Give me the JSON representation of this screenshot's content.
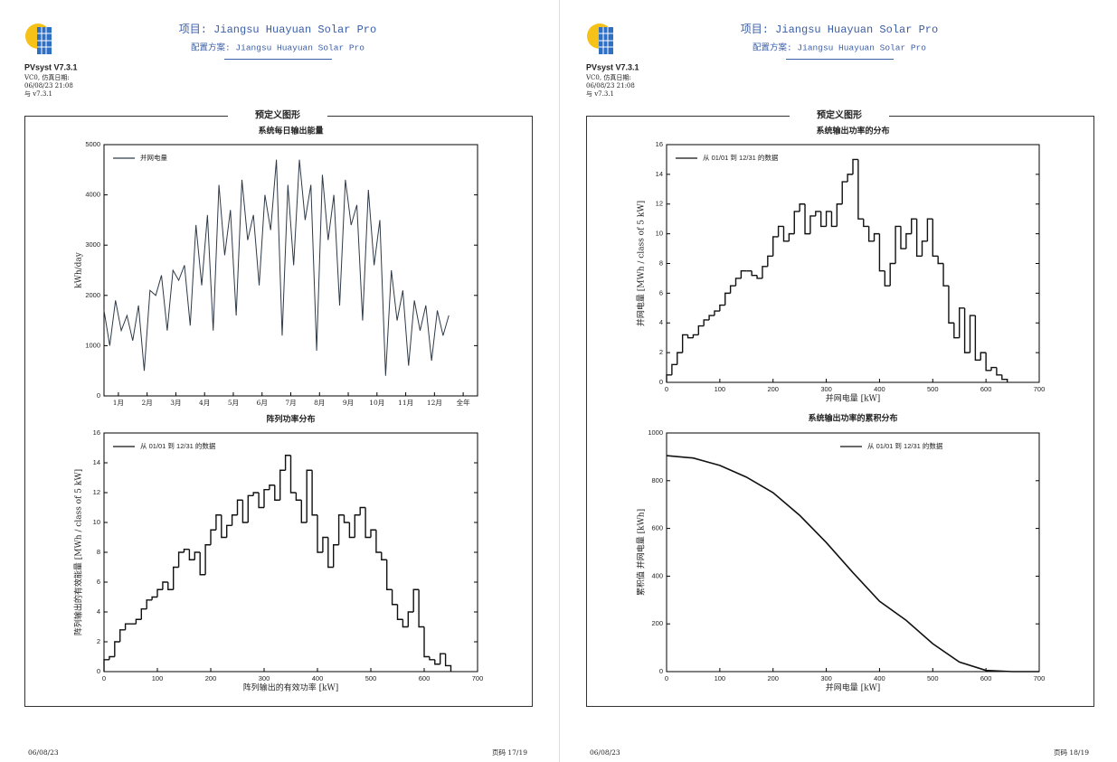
{
  "pages": [
    {
      "project": "项目: Jiangsu Huayuan Solar Pro",
      "variant": "配置方案: Jiangsu Huayuan Solar Pro",
      "product": "PVsyst V7.3.1",
      "info": [
        "VC0, 仿真日期:",
        "06/08/23 21:08",
        "与 v7.3.1"
      ],
      "section": "预定义图形",
      "footer_date": "06/08/23",
      "footer_page": "页码 17/19"
    },
    {
      "project": "项目: Jiangsu Huayuan Solar Pro",
      "variant": "配置方案: Jiangsu Huayuan Solar Pro",
      "product": "PVsyst V7.3.1",
      "info": [
        "VC0, 仿真日期:",
        "06/08/23 21:08",
        "与 v7.3.1"
      ],
      "section": "预定义图形",
      "footer_date": "06/08/23",
      "footer_page": "页码 18/19"
    }
  ],
  "chart_data": [
    {
      "type": "line",
      "title": "系统每日输出能量",
      "ylabel": "kWh/day",
      "legend": "upper left",
      "xlim": [
        0,
        13
      ],
      "ylim": [
        0,
        5000
      ],
      "xticks": [
        {
          "value": 0.5,
          "label": "1月"
        },
        {
          "value": 1.5,
          "label": "2月"
        },
        {
          "value": 2.5,
          "label": "3月"
        },
        {
          "value": 3.5,
          "label": "4月"
        },
        {
          "value": 4.5,
          "label": "5月"
        },
        {
          "value": 5.5,
          "label": "6月"
        },
        {
          "value": 6.5,
          "label": "7月"
        },
        {
          "value": 7.5,
          "label": "8月"
        },
        {
          "value": 8.5,
          "label": "9月"
        },
        {
          "value": 9.5,
          "label": "10月"
        },
        {
          "value": 10.5,
          "label": "11月"
        },
        {
          "value": 11.5,
          "label": "12月"
        },
        {
          "value": 12.5,
          "label": "全年"
        }
      ],
      "yticks": [
        0,
        1000,
        2000,
        3000,
        4000,
        5000
      ],
      "series": [
        {
          "name": "并网电量",
          "color": "#2e3a48",
          "x": [
            0,
            0.2,
            0.4,
            0.6,
            0.8,
            1,
            1.2,
            1.4,
            1.6,
            1.8,
            2,
            2.2,
            2.4,
            2.6,
            2.8,
            3,
            3.2,
            3.4,
            3.6,
            3.8,
            4,
            4.2,
            4.4,
            4.6,
            4.8,
            5,
            5.2,
            5.4,
            5.6,
            5.8,
            6,
            6.2,
            6.4,
            6.6,
            6.8,
            7,
            7.2,
            7.4,
            7.6,
            7.8,
            8,
            8.2,
            8.4,
            8.6,
            8.8,
            9,
            9.2,
            9.4,
            9.6,
            9.8,
            10,
            10.2,
            10.4,
            10.6,
            10.8,
            11,
            11.2,
            11.4,
            11.6,
            11.8,
            12
          ],
          "values": [
            1700,
            1000,
            1900,
            1300,
            1600,
            1100,
            1800,
            500,
            2100,
            2000,
            2400,
            1300,
            2500,
            2300,
            2600,
            1400,
            3400,
            2200,
            3600,
            1300,
            4200,
            2800,
            3700,
            1600,
            4300,
            3100,
            3600,
            2200,
            4000,
            3300,
            4700,
            1200,
            4200,
            2600,
            4700,
            3500,
            4200,
            900,
            4400,
            3100,
            4000,
            1800,
            4300,
            3400,
            3800,
            1500,
            4100,
            2600,
            3500,
            400,
            2500,
            1500,
            2100,
            600,
            1900,
            1300,
            1800,
            700,
            1700,
            1200,
            1600
          ]
        }
      ]
    },
    {
      "type": "histogram",
      "title": "阵列功率分布",
      "xlabel": "阵列输出的有效功率 [kW]",
      "ylabel": "阵列输出的有效能量 [MWh / class of 5 kW]",
      "legend": "upper left",
      "xlim": [
        0,
        700
      ],
      "ylim": [
        0,
        16
      ],
      "xticks": [
        0,
        100,
        200,
        300,
        400,
        500,
        600,
        700
      ],
      "yticks": [
        0,
        2,
        4,
        6,
        8,
        10,
        12,
        14,
        16
      ],
      "series": [
        {
          "name": "从 01/01 到 12/31 的数据",
          "color": "#111111",
          "bins": [
            0,
            10,
            20,
            30,
            40,
            50,
            60,
            70,
            80,
            90,
            100,
            110,
            120,
            130,
            140,
            150,
            160,
            170,
            180,
            190,
            200,
            210,
            220,
            230,
            240,
            250,
            260,
            270,
            280,
            290,
            300,
            310,
            320,
            330,
            340,
            350,
            360,
            370,
            380,
            390,
            400,
            410,
            420,
            430,
            440,
            450,
            460,
            470,
            480,
            490,
            500,
            510,
            520,
            530,
            540,
            550,
            560,
            570,
            580,
            590,
            600,
            610,
            620,
            630,
            640,
            650
          ],
          "values": [
            0.8,
            1.0,
            2.0,
            2.8,
            3.2,
            3.2,
            3.5,
            4.2,
            4.8,
            5.0,
            5.5,
            6.0,
            5.5,
            7.0,
            8.0,
            8.2,
            7.5,
            8.0,
            6.5,
            8.5,
            9.5,
            10.5,
            9.0,
            9.8,
            10.5,
            11.5,
            10.0,
            11.8,
            12.0,
            11.0,
            12.2,
            12.5,
            11.5,
            13.5,
            14.5,
            12.0,
            11.5,
            10.0,
            13.5,
            10.5,
            8.0,
            9.0,
            7.0,
            8.5,
            10.5,
            10.0,
            9.0,
            10.5,
            11.0,
            9.0,
            9.5,
            8.0,
            7.5,
            5.5,
            4.5,
            3.5,
            3.0,
            4.0,
            5.5,
            3.0,
            1.0,
            0.8,
            0.5,
            1.2,
            0.4
          ]
        }
      ]
    },
    {
      "type": "histogram",
      "title": "系统输出功率的分布",
      "xlabel": "并网电量 [kW]",
      "ylabel": "并网电量 [MWh / class of 5 kW]",
      "legend": "upper left",
      "xlim": [
        0,
        700
      ],
      "ylim": [
        0,
        16
      ],
      "xticks": [
        0,
        100,
        200,
        300,
        400,
        500,
        600,
        700
      ],
      "yticks": [
        0,
        2,
        4,
        6,
        8,
        10,
        12,
        14,
        16
      ],
      "series": [
        {
          "name": "从 01/01 到 12/31 的数据",
          "color": "#111111",
          "bins": [
            0,
            10,
            20,
            30,
            40,
            50,
            60,
            70,
            80,
            90,
            100,
            110,
            120,
            130,
            140,
            150,
            160,
            170,
            180,
            190,
            200,
            210,
            220,
            230,
            240,
            250,
            260,
            270,
            280,
            290,
            300,
            310,
            320,
            330,
            340,
            350,
            360,
            370,
            380,
            390,
            400,
            410,
            420,
            430,
            440,
            450,
            460,
            470,
            480,
            490,
            500,
            510,
            520,
            530,
            540,
            550,
            560,
            570,
            580,
            590,
            600,
            610,
            620,
            630,
            640
          ],
          "values": [
            0.5,
            1.2,
            2.0,
            3.2,
            3.0,
            3.2,
            3.8,
            4.2,
            4.5,
            4.8,
            5.2,
            6.0,
            6.5,
            7.0,
            7.5,
            7.5,
            7.2,
            7.0,
            7.8,
            8.5,
            9.8,
            10.5,
            9.5,
            10.0,
            11.5,
            12.0,
            10.0,
            11.2,
            11.5,
            10.5,
            11.5,
            10.5,
            12.0,
            13.5,
            14.0,
            15.0,
            11.0,
            10.5,
            9.5,
            10.0,
            7.5,
            6.5,
            8.0,
            10.5,
            9.0,
            10.0,
            11.0,
            8.5,
            9.5,
            11.0,
            8.5,
            8.0,
            6.5,
            4.0,
            3.0,
            5.0,
            2.0,
            4.5,
            1.5,
            2.0,
            0.8,
            1.0,
            0.5,
            0.2
          ]
        }
      ]
    },
    {
      "type": "line",
      "title": "系统输出功率的累积分布",
      "xlabel": "并网电量 [kW]",
      "ylabel": "累积值 并网电量 [kWh]",
      "legend": "upper right",
      "xlim": [
        0,
        700
      ],
      "ylim": [
        0,
        1000
      ],
      "xticks": [
        0,
        100,
        200,
        300,
        400,
        500,
        600,
        700
      ],
      "yticks": [
        0,
        200,
        400,
        600,
        800,
        1000
      ],
      "series": [
        {
          "name": "从 01/01 到 12/31 的数据",
          "color": "#111111",
          "x": [
            0,
            50,
            100,
            150,
            200,
            250,
            300,
            350,
            400,
            450,
            500,
            550,
            600,
            650,
            700
          ],
          "values": [
            905,
            895,
            864,
            815,
            750,
            655,
            541,
            415,
            295,
            215,
            117,
            40,
            5,
            0,
            0
          ]
        }
      ]
    }
  ]
}
